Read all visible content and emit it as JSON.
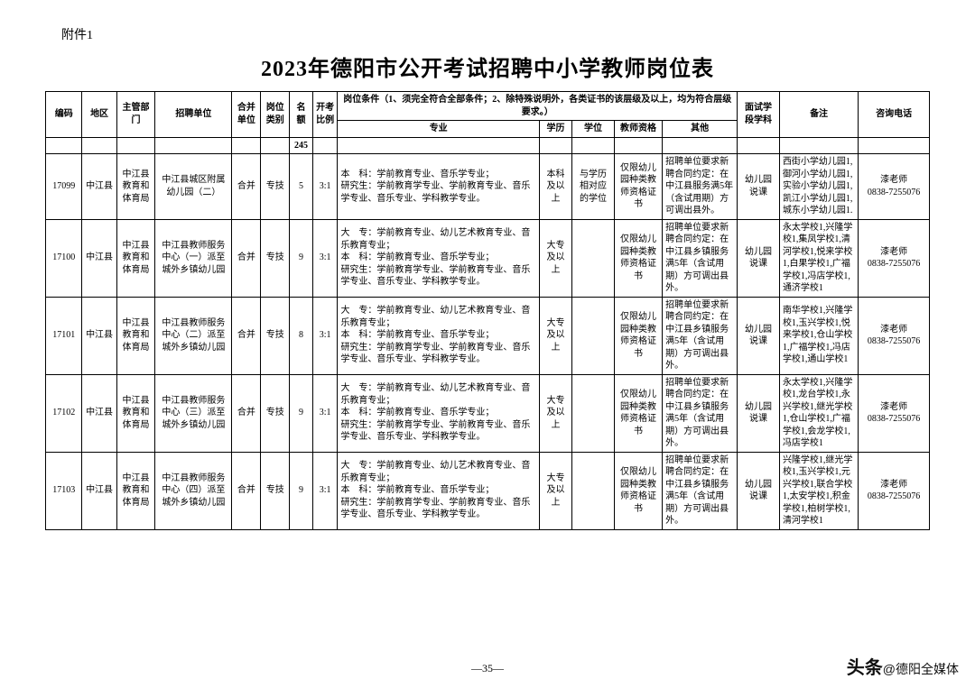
{
  "attachment_label": "附件1",
  "title": "2023年德阳市公开考试招聘中小学教师岗位表",
  "page_number": "—35—",
  "watermark_prefix": "头条",
  "watermark_at": "@",
  "watermark_name": "德阳全媒体",
  "header": {
    "code": "编码",
    "area": "地区",
    "dept": "主管部门",
    "unit": "招聘单位",
    "merge": "合并单位",
    "ptype": "岗位类别",
    "num": "名额",
    "ratio": "开考比例",
    "cond_main": "岗位条件（1、须完全符合全部条件；2、除特殊说明外，各类证书的该层级及以上，均为符合层级要求。）",
    "major": "专业",
    "edu": "学历",
    "degree": "学位",
    "cert": "教师资格",
    "other": "其他",
    "subject": "面试学段学科",
    "remark": "备注",
    "tel": "咨询电话",
    "total": "245"
  },
  "rows": [
    {
      "code": "17099",
      "area": "中江县",
      "dept": "中江县教育和体育局",
      "unit": "中江县城区附属幼儿园（二）",
      "merge": "合并",
      "ptype": "专技",
      "num": "5",
      "ratio": "3:1",
      "major": "本　科：学前教育专业、音乐学专业；\n研究生：学前教育学专业、学前教育专业、音乐学专业、音乐专业、学科教学专业。",
      "edu": "本科及以上",
      "degree": "与学历相对应的学位",
      "cert": "仅限幼儿园种类教师资格证书",
      "other": "招聘单位要求新聘合同约定：在中江县服务满5年（含试用期）方可调出县外。",
      "subject": "幼儿园说课",
      "remark": "西街小学幼儿园1,御河小学幼儿园1,实验小学幼儿园1,凯江小学幼儿园1,城东小学幼儿园1.",
      "tel": "漆老师\n0838-7255076"
    },
    {
      "code": "17100",
      "area": "中江县",
      "dept": "中江县教育和体育局",
      "unit": "中江县教师服务中心（一）派至城外乡镇幼儿园",
      "merge": "合并",
      "ptype": "专技",
      "num": "9",
      "ratio": "3:1",
      "major": "大　专：学前教育专业、幼儿艺术教育专业、音乐教育专业；\n本　科：学前教育专业、音乐学专业；\n研究生：学前教育学专业、学前教育专业、音乐学专业、音乐专业、学科教学专业。",
      "edu": "大专及以上",
      "degree": "",
      "cert": "仅限幼儿园种类教师资格证书",
      "other": "招聘单位要求新聘合同约定：在中江县乡镇服务满5年（含试用期）方可调出县外。",
      "subject": "幼儿园说课",
      "remark": "永太学校1,兴隆学校1,集凤学校1,清河学校1,悦来学校1,白果学校1,广福学校1,冯店学校1,通济学校1",
      "tel": "漆老师\n0838-7255076"
    },
    {
      "code": "17101",
      "area": "中江县",
      "dept": "中江县教育和体育局",
      "unit": "中江县教师服务中心（二）派至城外乡镇幼儿园",
      "merge": "合并",
      "ptype": "专技",
      "num": "8",
      "ratio": "3:1",
      "major": "大　专：学前教育专业、幼儿艺术教育专业、音乐教育专业；\n本　科：学前教育专业、音乐学专业；\n研究生：学前教育学专业、学前教育专业、音乐学专业、音乐专业、学科教学专业。",
      "edu": "大专及以上",
      "degree": "",
      "cert": "仅限幼儿园种类教师资格证书",
      "other": "招聘单位要求新聘合同约定：在中江县乡镇服务满5年（含试用期）方可调出县外。",
      "subject": "幼儿园说课",
      "remark": "南华学校1,兴隆学校1,玉兴学校1,悦来学校1,仓山学校1,广福学校1,冯店学校1,通山学校1",
      "tel": "漆老师\n0838-7255076"
    },
    {
      "code": "17102",
      "area": "中江县",
      "dept": "中江县教育和体育局",
      "unit": "中江县教师服务中心（三）派至城外乡镇幼儿园",
      "merge": "合并",
      "ptype": "专技",
      "num": "9",
      "ratio": "3:1",
      "major": "大　专：学前教育专业、幼儿艺术教育专业、音乐教育专业；\n本　科：学前教育专业、音乐学专业；\n研究生：学前教育学专业、学前教育专业、音乐学专业、音乐专业、学科教学专业。",
      "edu": "大专及以上",
      "degree": "",
      "cert": "仅限幼儿园种类教师资格证书",
      "other": "招聘单位要求新聘合同约定：在中江县乡镇服务满5年（含试用期）方可调出县外。",
      "subject": "幼儿园说课",
      "remark": "永太学校1,兴隆学校1,龙台学校1,永兴学校1,继光学校1,仓山学校1,广福学校1,会龙学校1,冯店学校1",
      "tel": "漆老师\n0838-7255076"
    },
    {
      "code": "17103",
      "area": "中江县",
      "dept": "中江县教育和体育局",
      "unit": "中江县教师服务中心（四）派至城外乡镇幼儿园",
      "merge": "合并",
      "ptype": "专技",
      "num": "9",
      "ratio": "3:1",
      "major": "大　专：学前教育专业、幼儿艺术教育专业、音乐教育专业；\n本　科：学前教育专业、音乐学专业；\n研究生：学前教育学专业、学前教育专业、音乐学专业、音乐专业、学科教学专业。",
      "edu": "大专及以上",
      "degree": "",
      "cert": "仅限幼儿园种类教师资格证书",
      "other": "招聘单位要求新聘合同约定：在中江县乡镇服务满5年（含试用期）方可调出县外。",
      "subject": "幼儿园说课",
      "remark": "兴隆学校1,继光学校1,玉兴学校1,元兴学校1,联合学校1,太安学校1,积金学校1,柏树学校1,清河学校1",
      "tel": "漆老师\n0838-7255076"
    }
  ]
}
